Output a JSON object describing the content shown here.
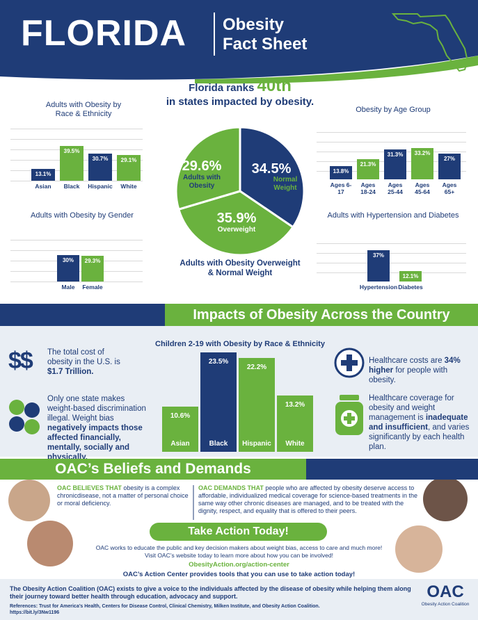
{
  "header": {
    "state": "FLORIDA",
    "title_line1": "Obesity",
    "title_line2": "Fact Sheet"
  },
  "ranking": {
    "prefix": "Florida ranks",
    "rank": "40th",
    "suffix": "in states impacted by obesity."
  },
  "chart_data": [
    {
      "type": "bar",
      "title": "Adults with Obesity by Race & Ethnicity",
      "categories": [
        "Asian",
        "Black",
        "Hispanic",
        "White"
      ],
      "values": [
        13.1,
        39.5,
        30.7,
        29.1
      ],
      "value_labels": [
        "13.1%",
        "39.5%",
        "30.7%",
        "29.1%"
      ],
      "colors": [
        "#1f3c77",
        "#6ab23e",
        "#1f3c77",
        "#6ab23e"
      ],
      "grid": true
    },
    {
      "type": "bar",
      "title": "Obesity by Age Group",
      "categories": [
        "Ages 6-17",
        "Ages 18-24",
        "Ages 25-44",
        "Ages 45-64",
        "Ages 65+"
      ],
      "values": [
        13.8,
        21.3,
        31.3,
        33.2,
        27
      ],
      "value_labels": [
        "13.8%",
        "21.3%",
        "31.3%",
        "33.2%",
        "27%"
      ],
      "colors": [
        "#1f3c77",
        "#6ab23e",
        "#1f3c77",
        "#6ab23e",
        "#1f3c77"
      ],
      "grid": true
    },
    {
      "type": "bar",
      "title": "Adults with Obesity by Gender",
      "categories": [
        "Male",
        "Female"
      ],
      "values": [
        30,
        29.3
      ],
      "value_labels": [
        "30%",
        "29.3%"
      ],
      "colors": [
        "#1f3c77",
        "#6ab23e"
      ],
      "grid": true
    },
    {
      "type": "bar",
      "title": "Adults with Hypertension and Diabetes",
      "categories": [
        "Hypertension",
        "Diabetes"
      ],
      "values": [
        37,
        12.1
      ],
      "value_labels": [
        "37%",
        "12.1%"
      ],
      "colors": [
        "#1f3c77",
        "#6ab23e"
      ],
      "grid": true
    },
    {
      "type": "pie",
      "title": "Adults with Obesity Overweight & Normal Weight",
      "categories": [
        "Normal Weight",
        "Overweight",
        "Adults with Obesity"
      ],
      "values": [
        34.5,
        35.9,
        29.6
      ],
      "value_labels": [
        "34.5%",
        "35.9%",
        "29.6%"
      ],
      "colors": [
        "#1f3c77",
        "#6ab23e",
        "#6ab23e"
      ]
    },
    {
      "type": "bar",
      "title": "Children 2-19 with Obesity by Race & Ethnicity",
      "categories": [
        "Asian",
        "Black",
        "Hispanic",
        "White"
      ],
      "values": [
        10.6,
        23.5,
        22.2,
        13.2
      ],
      "value_labels": [
        "10.6%",
        "23.5%",
        "22.2%",
        "13.2%"
      ],
      "colors": [
        "#6ab23e",
        "#1f3c77",
        "#6ab23e",
        "#6ab23e"
      ],
      "grid": false
    }
  ],
  "impacts": {
    "title": "Impacts of Obesity Across the Country",
    "cost_icon": "$$",
    "cost": [
      "The total cost of obesity in the U.S. is ",
      "$1.7 Trillion."
    ],
    "bias": [
      "Only one state makes weight-based discrimination illegal. Weight bias ",
      "negatively impacts those affected financially, mentally, socially and physically."
    ],
    "costs_higher": [
      "Healthcare costs are ",
      "34% higher",
      " for people with obesity."
    ],
    "coverage": [
      "Healthcare coverage for obesity and weight management is ",
      "inadequate and insufficient",
      ", and varies significantly by each health plan."
    ]
  },
  "beliefs": {
    "title": "OAC’s Beliefs and Demands",
    "believes": [
      "OAC BELIEVES THAT",
      " obesity is a complex chronicdisease, not a matter of personal choice or moral deficiency."
    ],
    "demands": [
      "OAC DEMANDS THAT",
      " people who are affected by obesity deserve access to affordable, individualized medical coverage for science-based treatments in the same way other chronic diseases are managed, and to be treated with the dignity, respect, and equality that is offered to their peers."
    ],
    "action_title": "Take Action Today!",
    "action_text": [
      "OAC works to educate the public and key decision makers about weight bias, access to care and much more!",
      "Visit OAC’s website today to learn more about how you can be involved!"
    ],
    "link": "ObesityAction.org/action-center",
    "action_center": "OAC’s Action Center provides tools that you can use to take action today!"
  },
  "footer": {
    "mission": "The Obesity Action Coalition (OAC) exists to give a voice to the individuals affected by the disease of obesity while helping them along their journey toward better health through education, advocacy and support.",
    "references": "References: Trust for America’s Health, Centers for Disease Control, Clinical Chemistry, Milken Institute, and Obesity Action Coalition.",
    "short_url": "https://bit.ly/3Nw1196",
    "logo": "OAC",
    "logo_sub": "Obesity Action Coalition"
  }
}
